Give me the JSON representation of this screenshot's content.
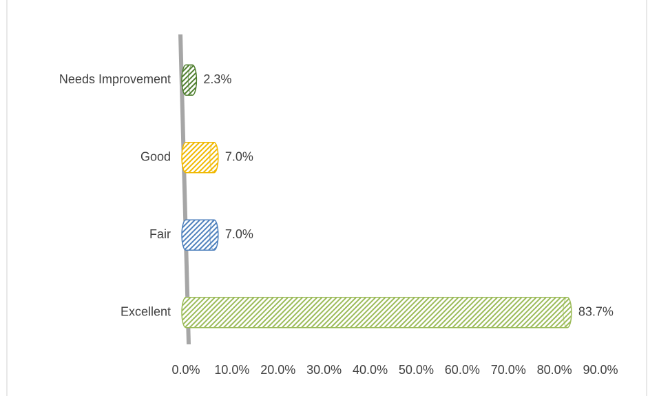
{
  "chart_data": {
    "type": "bar",
    "orientation": "horizontal",
    "categories": [
      "Excellent",
      "Fair",
      "Good",
      "Needs Improvement"
    ],
    "values": [
      83.7,
      7.0,
      7.0,
      2.3
    ],
    "value_labels": [
      "83.7%",
      "7.0%",
      "7.0%",
      "2.3%"
    ],
    "colors": [
      "#9bbb59",
      "#4f81bd",
      "#f0b800",
      "#4f7f2f"
    ],
    "xlim": [
      0,
      90
    ],
    "xticks": [
      {
        "value": 0,
        "label": "0.0%"
      },
      {
        "value": 10,
        "label": "10.0%"
      },
      {
        "value": 20,
        "label": "20.0%"
      },
      {
        "value": 30,
        "label": "30.0%"
      },
      {
        "value": 40,
        "label": "40.0%"
      },
      {
        "value": 50,
        "label": "50.0%"
      },
      {
        "value": 60,
        "label": "60.0%"
      },
      {
        "value": 70,
        "label": "70.0%"
      },
      {
        "value": 80,
        "label": "80.0%"
      },
      {
        "value": 90,
        "label": "90.0%"
      }
    ],
    "grid": false
  }
}
